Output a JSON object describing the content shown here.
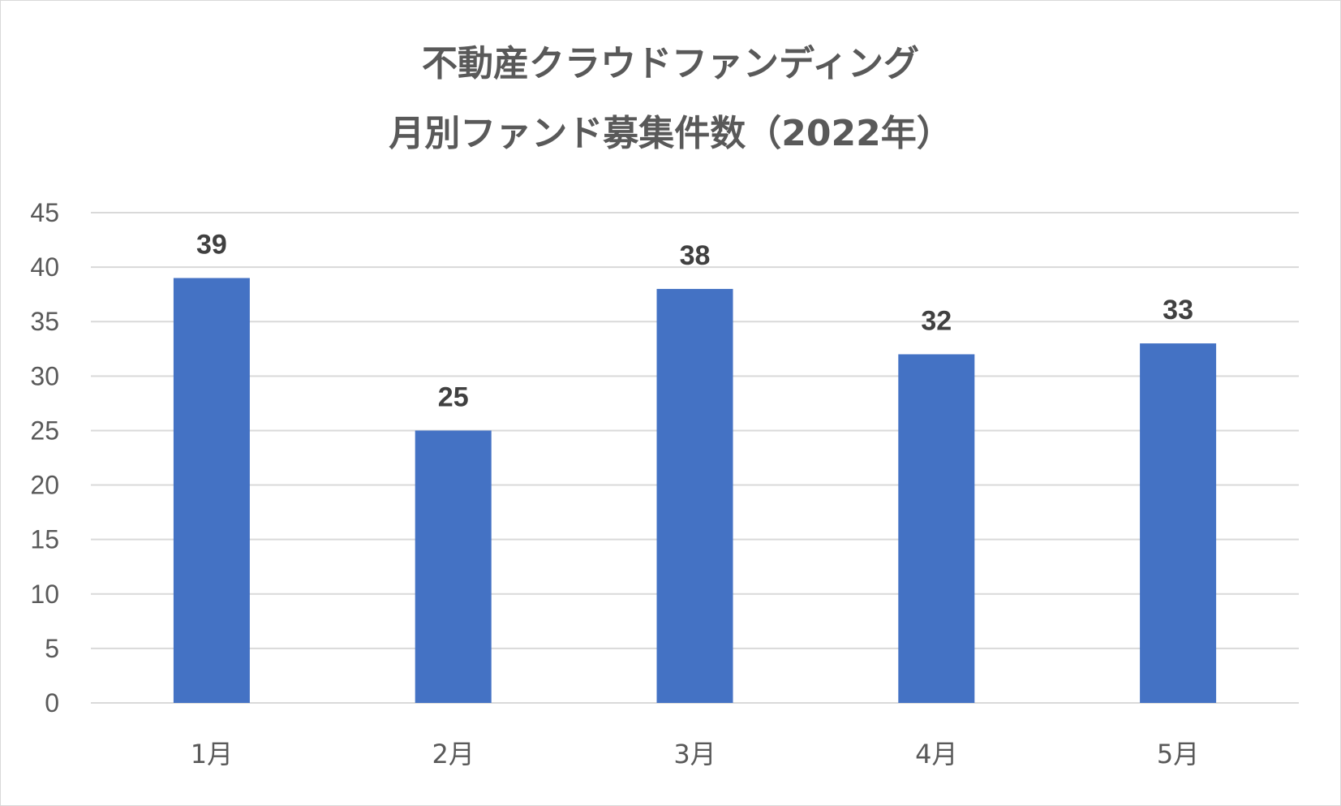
{
  "chart_data": {
    "type": "bar",
    "title": "不動産クラウドファンディング",
    "subtitle": "月別ファンド募集件数（2022年）",
    "categories": [
      "1月",
      "2月",
      "3月",
      "4月",
      "5月"
    ],
    "series": [
      {
        "values": [
          39,
          25,
          38,
          32,
          33
        ]
      }
    ],
    "data_labels": [
      "39",
      "25",
      "38",
      "32",
      "33"
    ],
    "yticks": [
      "0",
      "5",
      "10",
      "15",
      "20",
      "25",
      "30",
      "35",
      "40",
      "45"
    ],
    "ylim": [
      0,
      45
    ],
    "xlabel": "",
    "ylabel": "",
    "grid": true,
    "legend": "none",
    "bar_color": "#4472c4"
  }
}
